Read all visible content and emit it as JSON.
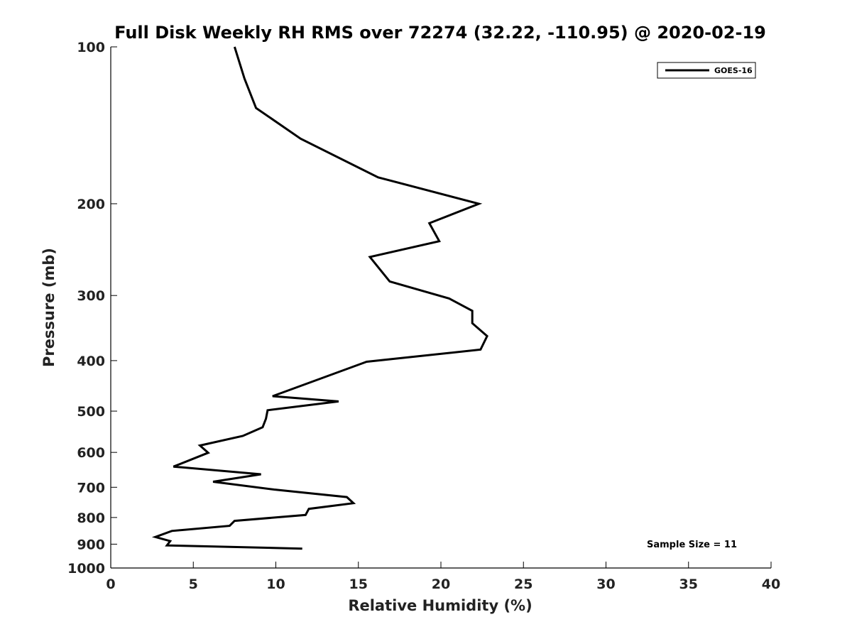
{
  "chart_data": {
    "type": "line",
    "title": "Full Disk Weekly RH RMS over 72274 (32.22, -110.95) @ 2020-02-19",
    "xlabel": "Relative Humidity (%)",
    "ylabel": "Pressure (mb)",
    "xlim": [
      0,
      40
    ],
    "ylim": [
      1000,
      100
    ],
    "yscale": "log",
    "y_reversed": true,
    "x_ticks": [
      "0",
      "5",
      "10",
      "15",
      "20",
      "25",
      "30",
      "35",
      "40"
    ],
    "y_ticks": [
      "100",
      "200",
      "300",
      "400",
      "500",
      "600",
      "700",
      "800",
      "900",
      "1000"
    ],
    "grid": false,
    "legend_position": "top-right",
    "annotation": "Sample Size = 11",
    "series": [
      {
        "name": "GOES-16",
        "color": "#000000",
        "points": [
          {
            "x": 7.5,
            "y": 100
          },
          {
            "x": 8.1,
            "y": 115
          },
          {
            "x": 8.8,
            "y": 131
          },
          {
            "x": 11.5,
            "y": 150
          },
          {
            "x": 16.2,
            "y": 178
          },
          {
            "x": 22.3,
            "y": 200
          },
          {
            "x": 19.3,
            "y": 218
          },
          {
            "x": 19.9,
            "y": 236
          },
          {
            "x": 15.7,
            "y": 253
          },
          {
            "x": 16.9,
            "y": 282
          },
          {
            "x": 20.5,
            "y": 304
          },
          {
            "x": 21.9,
            "y": 321
          },
          {
            "x": 21.9,
            "y": 339
          },
          {
            "x": 22.8,
            "y": 359
          },
          {
            "x": 22.4,
            "y": 381
          },
          {
            "x": 15.5,
            "y": 402
          },
          {
            "x": 9.8,
            "y": 468
          },
          {
            "x": 13.8,
            "y": 479
          },
          {
            "x": 9.5,
            "y": 498
          },
          {
            "x": 9.4,
            "y": 517
          },
          {
            "x": 9.2,
            "y": 537
          },
          {
            "x": 8.0,
            "y": 558
          },
          {
            "x": 5.4,
            "y": 582
          },
          {
            "x": 5.9,
            "y": 601
          },
          {
            "x": 3.8,
            "y": 639
          },
          {
            "x": 9.1,
            "y": 661
          },
          {
            "x": 6.2,
            "y": 683
          },
          {
            "x": 9.9,
            "y": 707
          },
          {
            "x": 14.3,
            "y": 731
          },
          {
            "x": 14.7,
            "y": 751
          },
          {
            "x": 12.0,
            "y": 770
          },
          {
            "x": 11.8,
            "y": 791
          },
          {
            "x": 7.5,
            "y": 812
          },
          {
            "x": 7.2,
            "y": 830
          },
          {
            "x": 3.7,
            "y": 849
          },
          {
            "x": 2.7,
            "y": 872
          },
          {
            "x": 3.6,
            "y": 888
          },
          {
            "x": 3.4,
            "y": 905
          },
          {
            "x": 11.6,
            "y": 918
          }
        ]
      }
    ]
  }
}
